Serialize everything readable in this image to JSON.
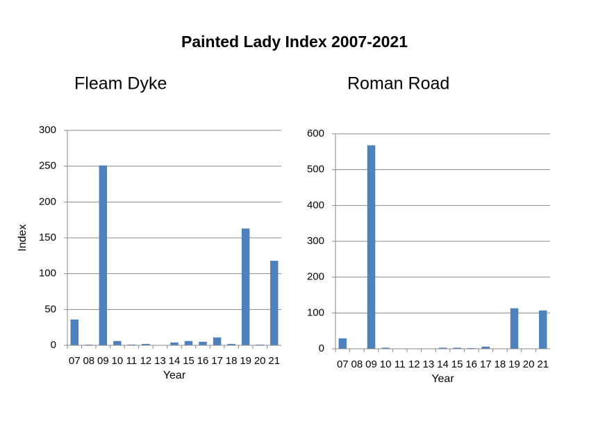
{
  "title": "Painted Lady Index 2007-2021",
  "chart_data": [
    {
      "type": "bar",
      "title": "Fleam Dyke",
      "ylabel": "Index",
      "xlabel": "Year",
      "categories": [
        "07",
        "08",
        "09",
        "10",
        "11",
        "12",
        "13",
        "14",
        "15",
        "16",
        "17",
        "18",
        "19",
        "20",
        "21"
      ],
      "values": [
        36,
        1,
        251,
        6,
        1,
        2,
        0,
        4,
        6,
        5,
        11,
        2,
        163,
        1,
        118
      ],
      "color": "#4f81bd",
      "ylim": [
        0,
        300
      ],
      "yticks": [
        0,
        50,
        100,
        150,
        200,
        250,
        300
      ],
      "grid": true
    },
    {
      "type": "bar",
      "title": "Roman Road",
      "xlabel": "Year",
      "categories": [
        "07",
        "08",
        "09",
        "10",
        "11",
        "12",
        "13",
        "14",
        "15",
        "16",
        "17",
        "18",
        "19",
        "20",
        "21"
      ],
      "values": [
        29,
        1,
        568,
        3,
        1,
        0,
        1,
        3,
        3,
        2,
        6,
        0,
        113,
        1,
        107
      ],
      "color": "#4f81bd",
      "ylim": [
        0,
        600
      ],
      "yticks": [
        0,
        100,
        200,
        300,
        400,
        500,
        600
      ],
      "grid": true
    }
  ]
}
